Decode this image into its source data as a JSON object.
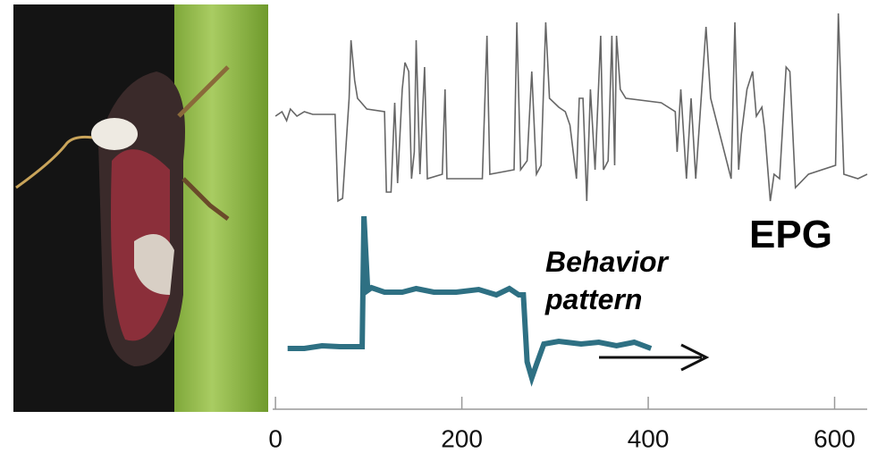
{
  "chart_data": {
    "type": "line",
    "xlim": [
      -3,
      635
    ],
    "ylim": [
      0,
      440
    ],
    "xticks": [
      0,
      200,
      400,
      600
    ],
    "series": [
      {
        "name": "EPG",
        "color": "#666666",
        "x": [
          0,
          7,
          12,
          16,
          23,
          31,
          40,
          64,
          67,
          72,
          79,
          81,
          85,
          88,
          98,
          117,
          119,
          124,
          128,
          131,
          136,
          139,
          143,
          146,
          149,
          151,
          155,
          160,
          163,
          179,
          182,
          184,
          222,
          227,
          230,
          256,
          259,
          263,
          270,
          275,
          280,
          285,
          290,
          294,
          304,
          311,
          316,
          323,
          326,
          330,
          334,
          338,
          343,
          349,
          352,
          357,
          361,
          364,
          366,
          370,
          376,
          414,
          429,
          431,
          435,
          441,
          446,
          451,
          462,
          467,
          489,
          493,
          497,
          500,
          506,
          512,
          516,
          522,
          525,
          531,
          535,
          541,
          548,
          552,
          558,
          572,
          601,
          604,
          610,
          625,
          635
        ],
        "values": [
          310,
          315,
          305,
          318,
          310,
          315,
          312,
          312,
          215,
          218,
          330,
          395,
          350,
          330,
          318,
          315,
          225,
          225,
          325,
          235,
          340,
          370,
          360,
          240,
          270,
          395,
          245,
          365,
          240,
          245,
          340,
          240,
          240,
          400,
          245,
          250,
          415,
          250,
          260,
          360,
          245,
          255,
          415,
          330,
          320,
          315,
          300,
          240,
          330,
          330,
          215,
          340,
          250,
          400,
          250,
          260,
          400,
          255,
          400,
          340,
          330,
          325,
          315,
          270,
          340,
          240,
          330,
          240,
          410,
          330,
          240,
          415,
          250,
          290,
          340,
          360,
          310,
          320,
          295,
          215,
          245,
          240,
          365,
          360,
          230,
          245,
          255,
          425,
          245,
          240,
          245
        ]
      },
      {
        "name": "Behavior pattern",
        "color": "#2e7083",
        "x": [
          13,
          31,
          50,
          69,
          88,
          93,
          95,
          99,
          103,
          117,
          136,
          151,
          170,
          194,
          218,
          237,
          251,
          261,
          266,
          270,
          275,
          280,
          288,
          304,
          328,
          347,
          366,
          385,
          403
        ],
        "values": [
          50,
          50,
          53,
          52,
          52,
          52,
          198,
          115,
          118,
          113,
          113,
          117,
          113,
          113,
          116,
          110,
          117,
          110,
          110,
          35,
          17,
          32,
          55,
          58,
          55,
          57,
          53,
          57,
          50
        ]
      }
    ]
  }
}
